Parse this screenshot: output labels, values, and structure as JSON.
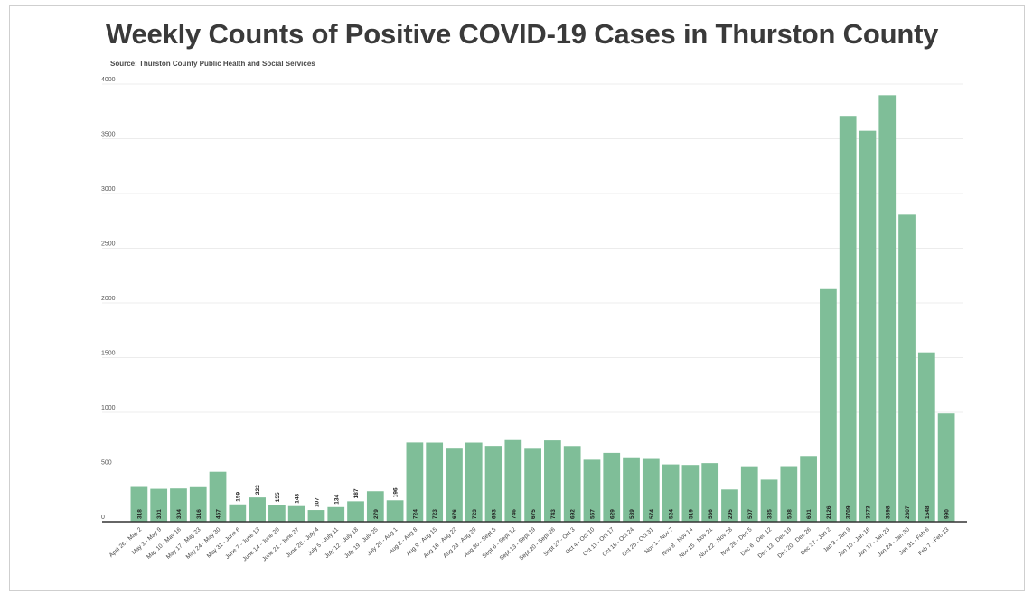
{
  "chart_data": {
    "type": "bar",
    "title": "Weekly Counts of Positive COVID-19 Cases in Thurston County",
    "subtitle": "Source: Thurston County Public Health and Social Services",
    "xlabel": "",
    "ylabel": "",
    "ylim": [
      0,
      4000
    ],
    "yticks": [
      0,
      500,
      1000,
      1500,
      2000,
      2500,
      3000,
      3500,
      4000
    ],
    "grid": true,
    "bar_color": "#7fbe98",
    "categories": [
      "April 26 - May 2",
      "May 3 - May 9",
      "May 10 - May 16",
      "May 17 - May 23",
      "May 24 - May 30",
      "May 31 - June 6",
      "June 7 - June 13",
      "June 14 - June 20",
      "June 21 - June 27",
      "June 28 - July 4",
      "July 5 - July 11",
      "July 12 - July 18",
      "July 19 - July 25",
      "July 26 - Aug 1",
      "Aug 2 - Aug 8",
      "Aug 9 - Aug 15",
      "Aug 16 - Aug 22",
      "Aug 23 - Aug 29",
      "Aug 30 - Sept 5",
      "Sept 6 - Sept 12",
      "Sept 13 - Sept 19",
      "Sept 20 - Sept 26",
      "Sept 27 - Oct 3",
      "Oct 4 - Oct 10",
      "Oct 11 - Oct 17",
      "Oct 18 - Oct 24",
      "Oct 25 - Oct 31",
      "Nov 1 - Nov 7",
      "Nov 8 - Nov 14",
      "Nov 15 - Nov 21",
      "Nov 22 - Nov 28",
      "Nov 29 - Dec 5",
      "Dec 6 - Dec 12",
      "Dec 13 - Dec 19",
      "Dec 20 - Dec 26",
      "Dec 27 - Jan 2",
      "Jan 3 - Jan 9",
      "Jan 10 - Jan 16",
      "Jan 17 - Jan 23",
      "Jan 24 - Jan 30",
      "Jan 31 - Feb 6",
      "Feb 7 - Feb 13"
    ],
    "values": [
      318,
      301,
      304,
      316,
      457,
      159,
      222,
      155,
      143,
      107,
      134,
      187,
      279,
      196,
      724,
      723,
      676,
      723,
      693,
      746,
      675,
      743,
      692,
      567,
      629,
      589,
      574,
      524,
      519,
      536,
      295,
      507,
      385,
      508,
      601,
      2126,
      3709,
      3573,
      3898,
      2807,
      1548,
      990
    ]
  }
}
